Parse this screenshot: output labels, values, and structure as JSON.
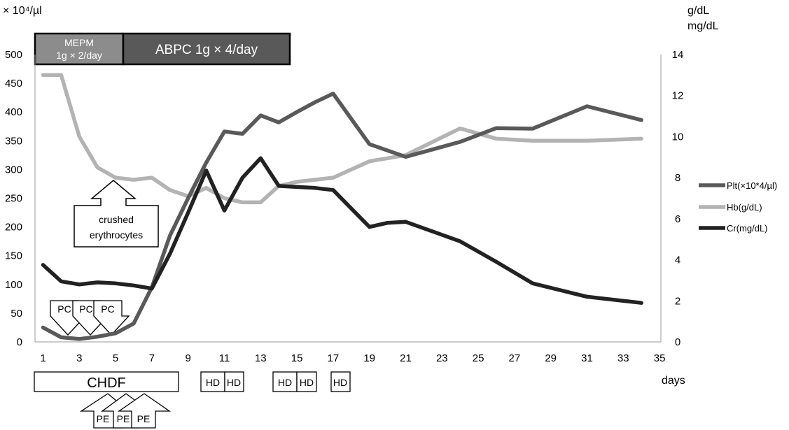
{
  "chart_data": {
    "type": "line",
    "x_ticks": [
      "1",
      "3",
      "5",
      "7",
      "9",
      "11",
      "13",
      "15",
      "17",
      "19",
      "21",
      "23",
      "25",
      "27",
      "29",
      "31",
      "33",
      "35"
    ],
    "x_range": [
      0,
      35
    ],
    "xlabel": "days",
    "y_left": {
      "unit": "× 10⁴/µl",
      "range": [
        0,
        500
      ],
      "ticks": [
        "0",
        "50",
        "100",
        "150",
        "200",
        "250",
        "300",
        "350",
        "400",
        "450",
        "500"
      ]
    },
    "y_right": {
      "unit_line1": "g/dL",
      "unit_line2": "mg/dL",
      "range": [
        0,
        14
      ],
      "ticks": [
        "0",
        "2",
        "4",
        "6",
        "8",
        "10",
        "12",
        "14"
      ]
    },
    "series": [
      {
        "name": "Plt(×10*4/µl)",
        "axis": "left",
        "color": "#595959",
        "x": [
          1,
          2,
          3,
          4,
          5,
          6,
          7,
          8,
          9,
          10,
          11,
          12,
          13,
          14,
          15,
          16,
          17,
          19,
          21,
          24,
          26,
          28,
          31,
          34
        ],
        "y": [
          25,
          8,
          5,
          9,
          15,
          32,
          95,
          185,
          250,
          312,
          366,
          362,
          394,
          382,
          400,
          417,
          432,
          344,
          322,
          348,
          372,
          371,
          410,
          386
        ]
      },
      {
        "name": "Hb(g/dL)",
        "axis": "right",
        "color": "#b3b3b3",
        "x": [
          1,
          2,
          3,
          4,
          5,
          6,
          7,
          8,
          9,
          10,
          11,
          12,
          13,
          14,
          15,
          16,
          17,
          19,
          21,
          24,
          26,
          28,
          31,
          34
        ],
        "y": [
          13,
          13,
          10,
          8.5,
          8,
          7.9,
          8,
          7.4,
          7.1,
          7.5,
          7.0,
          6.8,
          6.8,
          7.6,
          7.8,
          7.9,
          8.0,
          8.8,
          9.1,
          10.4,
          9.9,
          9.8,
          9.8,
          9.9
        ]
      },
      {
        "name": "Cr(mg/dL)",
        "axis": "right",
        "color": "#222222",
        "x": [
          1,
          2,
          3,
          4,
          5,
          6,
          7,
          8,
          9,
          10,
          11,
          12,
          13,
          14,
          15,
          16,
          17,
          19,
          20,
          21,
          24,
          26,
          28,
          31,
          34
        ],
        "y": [
          3.75,
          2.95,
          2.8,
          2.9,
          2.85,
          2.75,
          2.6,
          4.3,
          6.3,
          8.35,
          6.4,
          8.0,
          8.95,
          7.6,
          7.55,
          7.5,
          7.4,
          5.6,
          5.8,
          5.85,
          4.9,
          3.9,
          2.85,
          2.2,
          1.9
        ]
      }
    ]
  },
  "antibiotics": [
    {
      "line1": "MEPM",
      "line2": "1g × 2/day"
    },
    {
      "label": "ABPC 1g × 4/day"
    }
  ],
  "annotation": {
    "line1": "crushed",
    "line2": "erythrocytes"
  },
  "pc_label": "PC",
  "pe_label": "PE",
  "chdf_label": "CHDF",
  "hd_label": "HD"
}
